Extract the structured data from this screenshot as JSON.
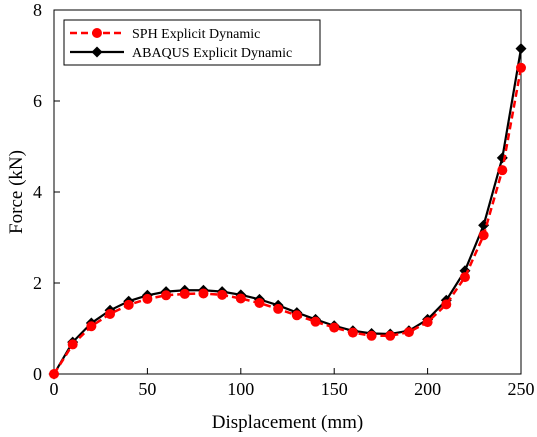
{
  "chart_data": {
    "type": "line",
    "xlabel": "Displacement (mm)",
    "ylabel": "Force (kN)",
    "xlim": [
      0,
      250
    ],
    "ylim": [
      0,
      8
    ],
    "xticks": [
      "0",
      "50",
      "100",
      "150",
      "200",
      "250"
    ],
    "yticks": [
      "0",
      "2",
      "4",
      "6",
      "8"
    ],
    "grid": false,
    "legend_position": "top-left",
    "series": [
      {
        "name": "SPH  Explicit Dynamic",
        "color": "#ff0000",
        "style": "dashed",
        "marker": "circle",
        "x": [
          0,
          10,
          20,
          30,
          40,
          50,
          60,
          70,
          80,
          90,
          100,
          110,
          120,
          130,
          140,
          150,
          160,
          170,
          180,
          190,
          200,
          210,
          220,
          230,
          240,
          250
        ],
        "y": [
          0,
          0.65,
          1.05,
          1.32,
          1.52,
          1.65,
          1.73,
          1.76,
          1.77,
          1.74,
          1.66,
          1.56,
          1.43,
          1.29,
          1.15,
          1.02,
          0.91,
          0.84,
          0.84,
          0.92,
          1.14,
          1.53,
          2.13,
          3.05,
          4.48,
          6.73
        ]
      },
      {
        "name": "ABAQUS  Explicit Dynamic",
        "color": "#000000",
        "style": "solid",
        "marker": "diamond",
        "x": [
          0,
          10,
          20,
          30,
          40,
          50,
          60,
          70,
          80,
          90,
          100,
          110,
          120,
          130,
          140,
          150,
          160,
          170,
          180,
          190,
          200,
          210,
          220,
          230,
          240,
          250
        ],
        "y": [
          0,
          0.7,
          1.12,
          1.4,
          1.6,
          1.73,
          1.81,
          1.84,
          1.84,
          1.81,
          1.74,
          1.64,
          1.51,
          1.35,
          1.2,
          1.06,
          0.95,
          0.89,
          0.88,
          0.95,
          1.2,
          1.62,
          2.27,
          3.27,
          4.75,
          7.15
        ]
      }
    ]
  }
}
